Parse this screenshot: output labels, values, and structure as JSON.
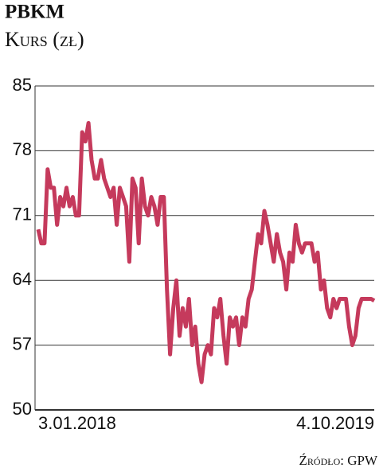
{
  "chart_data": {
    "type": "line",
    "title": "PBKM",
    "subtitle": "Kurs (zł)",
    "source": "Źródło: GPW",
    "categories": [
      "3.01.2018",
      null,
      null,
      null,
      null,
      null,
      null,
      null,
      null,
      null,
      null,
      null,
      null,
      null,
      null,
      null,
      null,
      null,
      null,
      null,
      null,
      null,
      null,
      null,
      null,
      null,
      null,
      null,
      null,
      null,
      null,
      null,
      null,
      null,
      null,
      null,
      null,
      null,
      null,
      null,
      null,
      null,
      null,
      null,
      null,
      null,
      null,
      null,
      null,
      null,
      null,
      null,
      null,
      null,
      null,
      null,
      null,
      null,
      null,
      null,
      null,
      null,
      null,
      null,
      null,
      null,
      null,
      null,
      null,
      null,
      null,
      null,
      null,
      null,
      null,
      null,
      null,
      null,
      null,
      null,
      null,
      null,
      null,
      null,
      null,
      null,
      null,
      null,
      null,
      null,
      null,
      null,
      null,
      null,
      null,
      null,
      null,
      null,
      null,
      null,
      null,
      null,
      null,
      null,
      null,
      null,
      null,
      "4.10.2019"
    ],
    "series": [
      {
        "name": "PBKM",
        "color": "#c53a5c",
        "values": [
          69.5,
          68,
          68,
          76,
          74,
          74,
          70,
          73,
          72,
          74,
          72,
          73,
          71,
          71,
          80,
          79,
          81,
          77,
          75,
          75,
          77,
          75,
          74,
          73,
          74,
          70,
          74,
          73,
          72,
          66,
          75,
          74,
          68,
          75,
          72,
          71,
          73,
          72,
          70,
          73,
          73,
          63,
          56,
          61,
          64,
          58,
          61,
          59,
          62,
          57,
          59,
          55,
          53,
          56,
          57,
          56,
          61,
          60,
          62,
          58,
          55,
          60,
          59,
          60,
          57,
          60,
          59,
          62,
          63,
          66,
          69,
          68,
          71.5,
          70,
          68,
          66,
          69,
          67,
          66,
          63,
          67,
          66,
          70,
          68,
          67,
          68,
          68,
          68,
          66,
          67,
          63,
          64,
          61,
          60,
          62,
          61,
          62,
          62,
          62,
          59,
          57,
          58,
          61,
          62,
          62,
          62,
          62,
          61.8
        ]
      }
    ],
    "ylim": [
      50,
      85
    ],
    "yticks": [
      50,
      57,
      64,
      71,
      78,
      85
    ],
    "grid": true
  }
}
